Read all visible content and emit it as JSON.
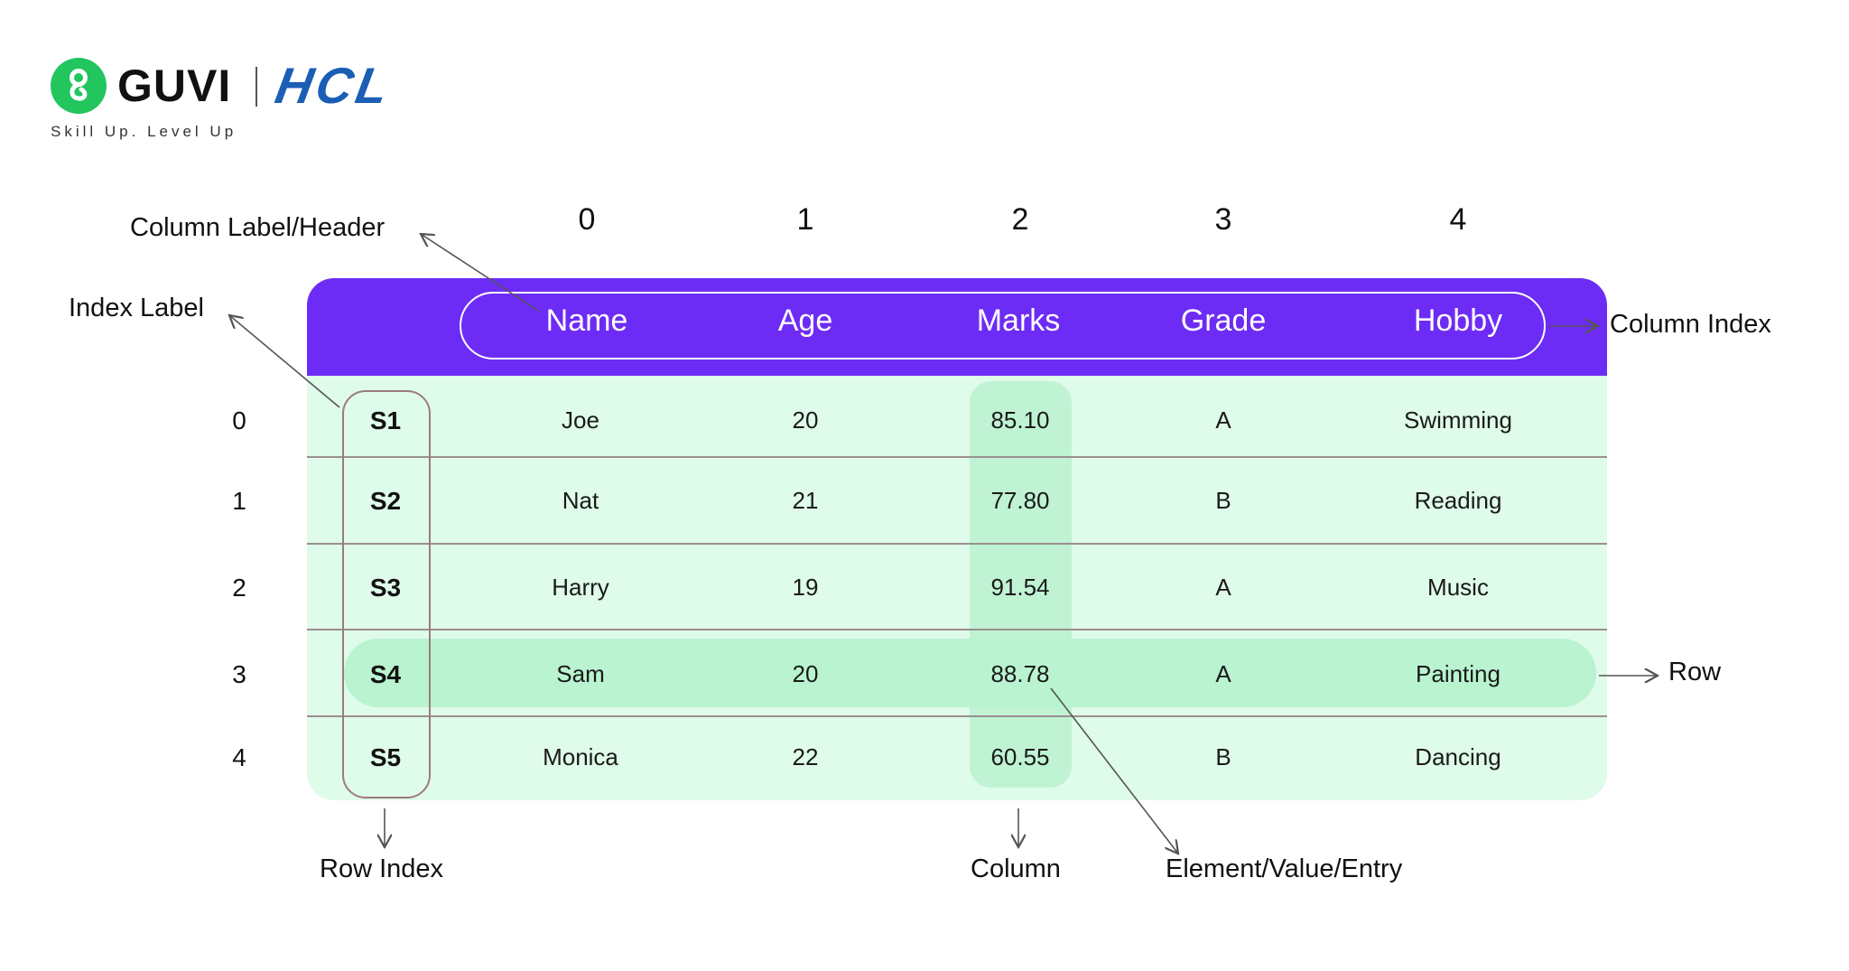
{
  "logo": {
    "brand": "GUVI",
    "partner": "HCL",
    "tagline": "Skill Up. Level Up"
  },
  "column_index_numbers": [
    "0",
    "1",
    "2",
    "3",
    "4"
  ],
  "header": [
    "Name",
    "Age",
    "Marks",
    "Grade",
    "Hobby"
  ],
  "rows": [
    {
      "num": "0",
      "index_label": "S1",
      "cells": [
        "Joe",
        "20",
        "85.10",
        "A",
        "Swimming"
      ]
    },
    {
      "num": "1",
      "index_label": "S2",
      "cells": [
        "Nat",
        "21",
        "77.80",
        "B",
        "Reading"
      ]
    },
    {
      "num": "2",
      "index_label": "S3",
      "cells": [
        "Harry",
        "19",
        "91.54",
        "A",
        "Music"
      ]
    },
    {
      "num": "3",
      "index_label": "S4",
      "cells": [
        "Sam",
        "20",
        "88.78",
        "A",
        "Painting"
      ]
    },
    {
      "num": "4",
      "index_label": "S5",
      "cells": [
        "Monica",
        "22",
        "60.55",
        "B",
        "Dancing"
      ]
    }
  ],
  "annotations": {
    "column_label_header": "Column Label/Header",
    "index_label": "Index Label",
    "column_index": "Column Index",
    "row": "Row",
    "row_index": "Row Index",
    "column": "Column",
    "element": "Element/Value/Entry"
  },
  "colors": {
    "header": "#6d2cf5",
    "table": "#dffbe9",
    "highlight": "#b9f3d0",
    "logo_green": "#22c55e",
    "logo_blue": "#1b5eb5"
  }
}
